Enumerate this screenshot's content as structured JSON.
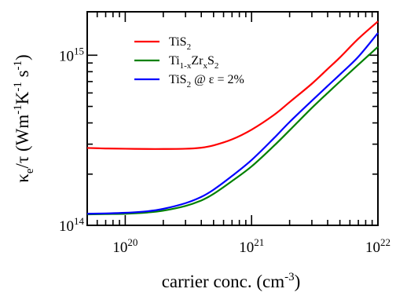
{
  "chart_data": {
    "type": "line",
    "xlabel": "carrier conc. (cm^-3)",
    "ylabel": "κ_e/τ (Wm^-1K^-1s^-1)",
    "x_scale": "log",
    "y_scale": "log",
    "xlim": [
      5e+19,
      1e+22
    ],
    "ylim": [
      100000000000000.0,
      1800000000000000.0
    ],
    "x_tick_labels": [
      {
        "value": 1e+20,
        "base": "10",
        "exp": "20"
      },
      {
        "value": 1e+21,
        "base": "10",
        "exp": "21"
      },
      {
        "value": 1e+22,
        "base": "10",
        "exp": "22"
      }
    ],
    "y_tick_labels": [
      {
        "value": 100000000000000.0,
        "base": "10",
        "exp": "14"
      },
      {
        "value": 1000000000000000.0,
        "base": "10",
        "exp": "15"
      }
    ],
    "grid": false,
    "legend_position": "top-left",
    "series": [
      {
        "name": "TiS2",
        "legend_parts": [
          {
            "t": "TiS",
            "s": ""
          },
          {
            "t": "2",
            "s": "sub"
          }
        ],
        "color": "#ff0000",
        "x": [
          5e+19,
          7e+19,
          1e+20,
          1.5e+20,
          2e+20,
          3e+20,
          4e+20,
          5e+20,
          7e+20,
          1e+21,
          1.5e+21,
          2e+21,
          3e+21,
          4e+21,
          5e+21,
          7e+21,
          1e+22
        ],
        "y": [
          285000000000000.0,
          283000000000000.0,
          282000000000000.0,
          281000000000000.0,
          281000000000000.0,
          282000000000000.0,
          286000000000000.0,
          295000000000000.0,
          320000000000000.0,
          365000000000000.0,
          445000000000000.0,
          530000000000000.0,
          680000000000000.0,
          830000000000000.0,
          970000000000000.0,
          1250000000000000.0,
          1580000000000000.0
        ]
      },
      {
        "name": "Ti1-xZrxS2",
        "legend_parts": [
          {
            "t": "Ti",
            "s": ""
          },
          {
            "t": "1-x",
            "s": "sub"
          },
          {
            "t": "Zr",
            "s": ""
          },
          {
            "t": "x",
            "s": "sub"
          },
          {
            "t": "S",
            "s": ""
          },
          {
            "t": "2",
            "s": "sub"
          }
        ],
        "color": "#008000",
        "x": [
          5e+19,
          7e+19,
          1e+20,
          1.5e+20,
          2e+20,
          3e+20,
          4e+20,
          5e+20,
          7e+20,
          1e+21,
          1.5e+21,
          2e+21,
          3e+21,
          4e+21,
          5e+21,
          7e+21,
          1e+22
        ],
        "y": [
          116000000000000.0,
          116500000000000.0,
          117000000000000.0,
          119000000000000.0,
          122000000000000.0,
          130000000000000.0,
          140000000000000.0,
          153000000000000.0,
          182000000000000.0,
          222000000000000.0,
          293000000000000.0,
          362000000000000.0,
          490000000000000.0,
          600000000000000.0,
          700000000000000.0,
          880000000000000.0,
          1120000000000000.0
        ]
      },
      {
        "name": "TiS2 @ ε = 2%",
        "legend_parts": [
          {
            "t": "TiS",
            "s": ""
          },
          {
            "t": "2",
            "s": "sub"
          },
          {
            "t": " @ ε = 2%",
            "s": ""
          }
        ],
        "color": "#0000ff",
        "x": [
          5e+19,
          7e+19,
          1e+20,
          1.5e+20,
          2e+20,
          3e+20,
          4e+20,
          5e+20,
          7e+20,
          1e+21,
          1.5e+21,
          2e+21,
          3e+21,
          4e+21,
          5e+21,
          7e+21,
          1e+22
        ],
        "y": [
          117000000000000.0,
          117500000000000.0,
          118500000000000.0,
          121000000000000.0,
          125000000000000.0,
          135000000000000.0,
          147000000000000.0,
          162000000000000.0,
          195000000000000.0,
          242000000000000.0,
          325000000000000.0,
          405000000000000.0,
          540000000000000.0,
          660000000000000.0,
          770000000000000.0,
          980000000000000.0,
          1350000000000000.0
        ]
      }
    ]
  }
}
